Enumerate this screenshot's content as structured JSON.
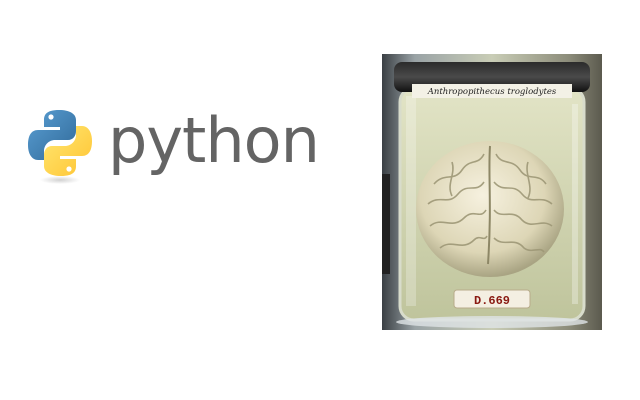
{
  "logo": {
    "wordmark": "python",
    "icon": "python-snakes-icon",
    "colors": {
      "blue": "#3b74a8",
      "yellow": "#f3cd3e",
      "text": "#646464"
    }
  },
  "photo": {
    "jar_label": "Anthropopithecus troglodytes",
    "specimen_tag": "D.669",
    "subject": "brain-in-jar"
  }
}
